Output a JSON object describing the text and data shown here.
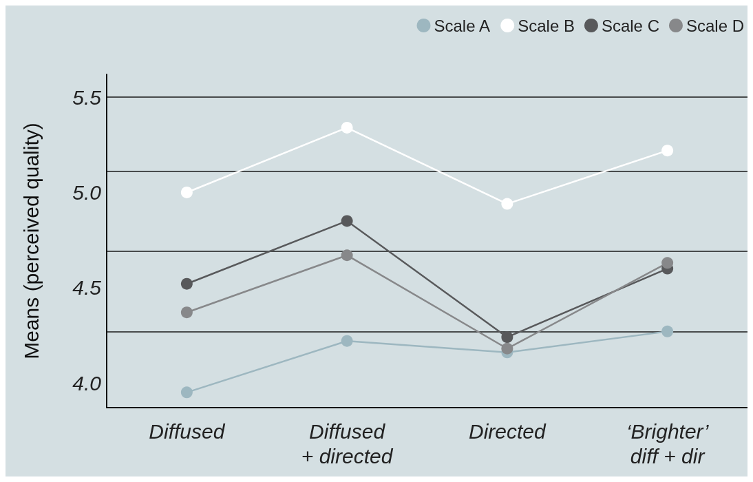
{
  "chart_data": {
    "type": "line",
    "ylabel": "Means (perceived quality)",
    "categories": [
      "Diffused",
      "Diffused\n+ directed",
      "Directed",
      "‘Brighter’\ndiff + dir"
    ],
    "series": [
      {
        "name": "Scale A",
        "color": "#9db7c0",
        "values": [
          3.95,
          4.22,
          4.16,
          4.27
        ]
      },
      {
        "name": "Scale B",
        "color": "#ffffff",
        "values": [
          5.0,
          5.34,
          4.94,
          5.22
        ]
      },
      {
        "name": "Scale C",
        "color": "#58595b",
        "values": [
          4.52,
          4.85,
          4.24,
          4.6
        ]
      },
      {
        "name": "Scale D",
        "color": "#87888a",
        "values": [
          4.37,
          4.67,
          4.18,
          4.63
        ]
      }
    ],
    "ylim": [
      3.87,
      5.62
    ],
    "yticks": [
      {
        "value": 4,
        "label": "4.0"
      },
      4.5,
      {
        "value": 5,
        "label": "5.0"
      },
      5.5
    ],
    "ref_lines": [
      {
        "axis": "y",
        "value": 5.5,
        "color": "#1a1a1a"
      },
      {
        "axis": "y",
        "value": 5.11,
        "color": "#1a1a1a"
      },
      {
        "axis": "y",
        "value": 4.69,
        "color": "#1a1a1a"
      },
      {
        "axis": "y",
        "value": 4.27,
        "color": "#1a1a1a"
      }
    ],
    "grid": false,
    "legend": "top right",
    "marker": "circle",
    "line_style": "solid"
  }
}
